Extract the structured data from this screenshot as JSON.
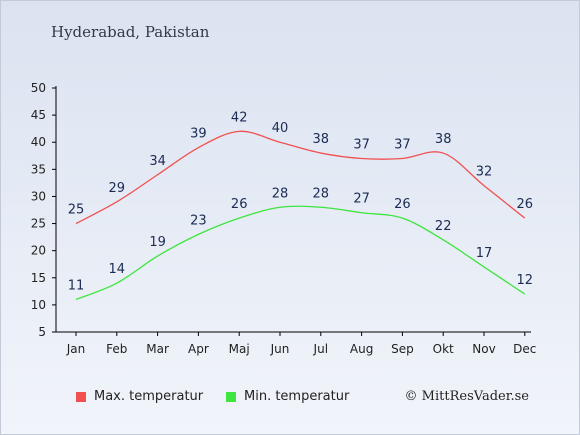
{
  "header": {
    "title": "Hyderabad, Pakistan"
  },
  "chart_data": {
    "type": "line",
    "categories": [
      "Jan",
      "Feb",
      "Mar",
      "Apr",
      "Maj",
      "Jun",
      "Jul",
      "Aug",
      "Sep",
      "Okt",
      "Nov",
      "Dec"
    ],
    "series": [
      {
        "name": "Max. temperatur",
        "color": "#f05050",
        "values": [
          25,
          29,
          34,
          39,
          42,
          40,
          38,
          37,
          37,
          38,
          32,
          26
        ]
      },
      {
        "name": "Min. temperatur",
        "color": "#3ee53e",
        "values": [
          11,
          14,
          19,
          23,
          26,
          28,
          28,
          27,
          26,
          22,
          17,
          12
        ]
      }
    ],
    "yticks": [
      5,
      10,
      15,
      20,
      25,
      30,
      35,
      40,
      45,
      50
    ],
    "ylim": [
      5,
      50
    ],
    "grid": false,
    "legend": "bottom-left"
  },
  "footer": {
    "copyright": "© MittResVader.se"
  }
}
